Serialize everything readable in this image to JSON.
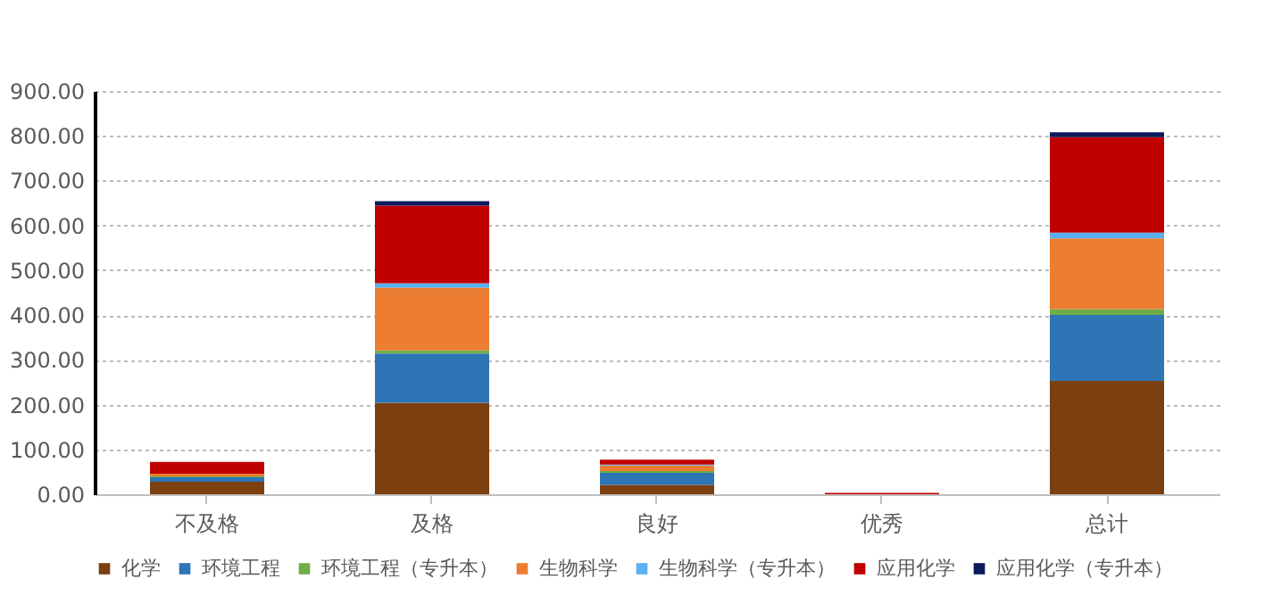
{
  "chart_data": {
    "type": "bar",
    "stacked": true,
    "categories": [
      "不及格",
      "及格",
      "良好",
      "优秀",
      "总计"
    ],
    "series": [
      {
        "name": "化学",
        "color": "#7b3f10",
        "values": [
          28,
          204,
          21,
          0,
          253
        ]
      },
      {
        "name": "环境工程",
        "color": "#2e75b6",
        "values": [
          10,
          110,
          27,
          0,
          147
        ]
      },
      {
        "name": "环境工程（专升本）",
        "color": "#70ad47",
        "values": [
          2,
          7,
          4,
          0,
          13
        ]
      },
      {
        "name": "生物科学",
        "color": "#ed7d31",
        "values": [
          6,
          140,
          12,
          0,
          158
        ]
      },
      {
        "name": "生物科学（专升本）",
        "color": "#5bb0f0",
        "values": [
          null,
          10,
          2,
          0,
          13
        ]
      },
      {
        "name": "应用化学",
        "color": "#c00000",
        "values": [
          26,
          173,
          11,
          3,
          213
        ]
      },
      {
        "name": "应用化学（专升本）",
        "color": "#0a1a5c",
        "values": [
          0,
          10,
          null,
          0,
          11
        ]
      }
    ],
    "ylim": [
      0,
      900
    ],
    "yticks": [
      {
        "value": 0,
        "label": "0.00"
      },
      {
        "value": 100,
        "label": "100.00"
      },
      {
        "value": 200,
        "label": "200.00"
      },
      {
        "value": 300,
        "label": "300.00"
      },
      {
        "value": 400,
        "label": "400.00"
      },
      {
        "value": 500,
        "label": "500.00"
      },
      {
        "value": 600,
        "label": "600.00"
      },
      {
        "value": 700,
        "label": "700.00"
      },
      {
        "value": 800,
        "label": "800.00"
      },
      {
        "value": 900,
        "label": "900.00"
      }
    ],
    "grid": "y",
    "legend": "bottom"
  }
}
